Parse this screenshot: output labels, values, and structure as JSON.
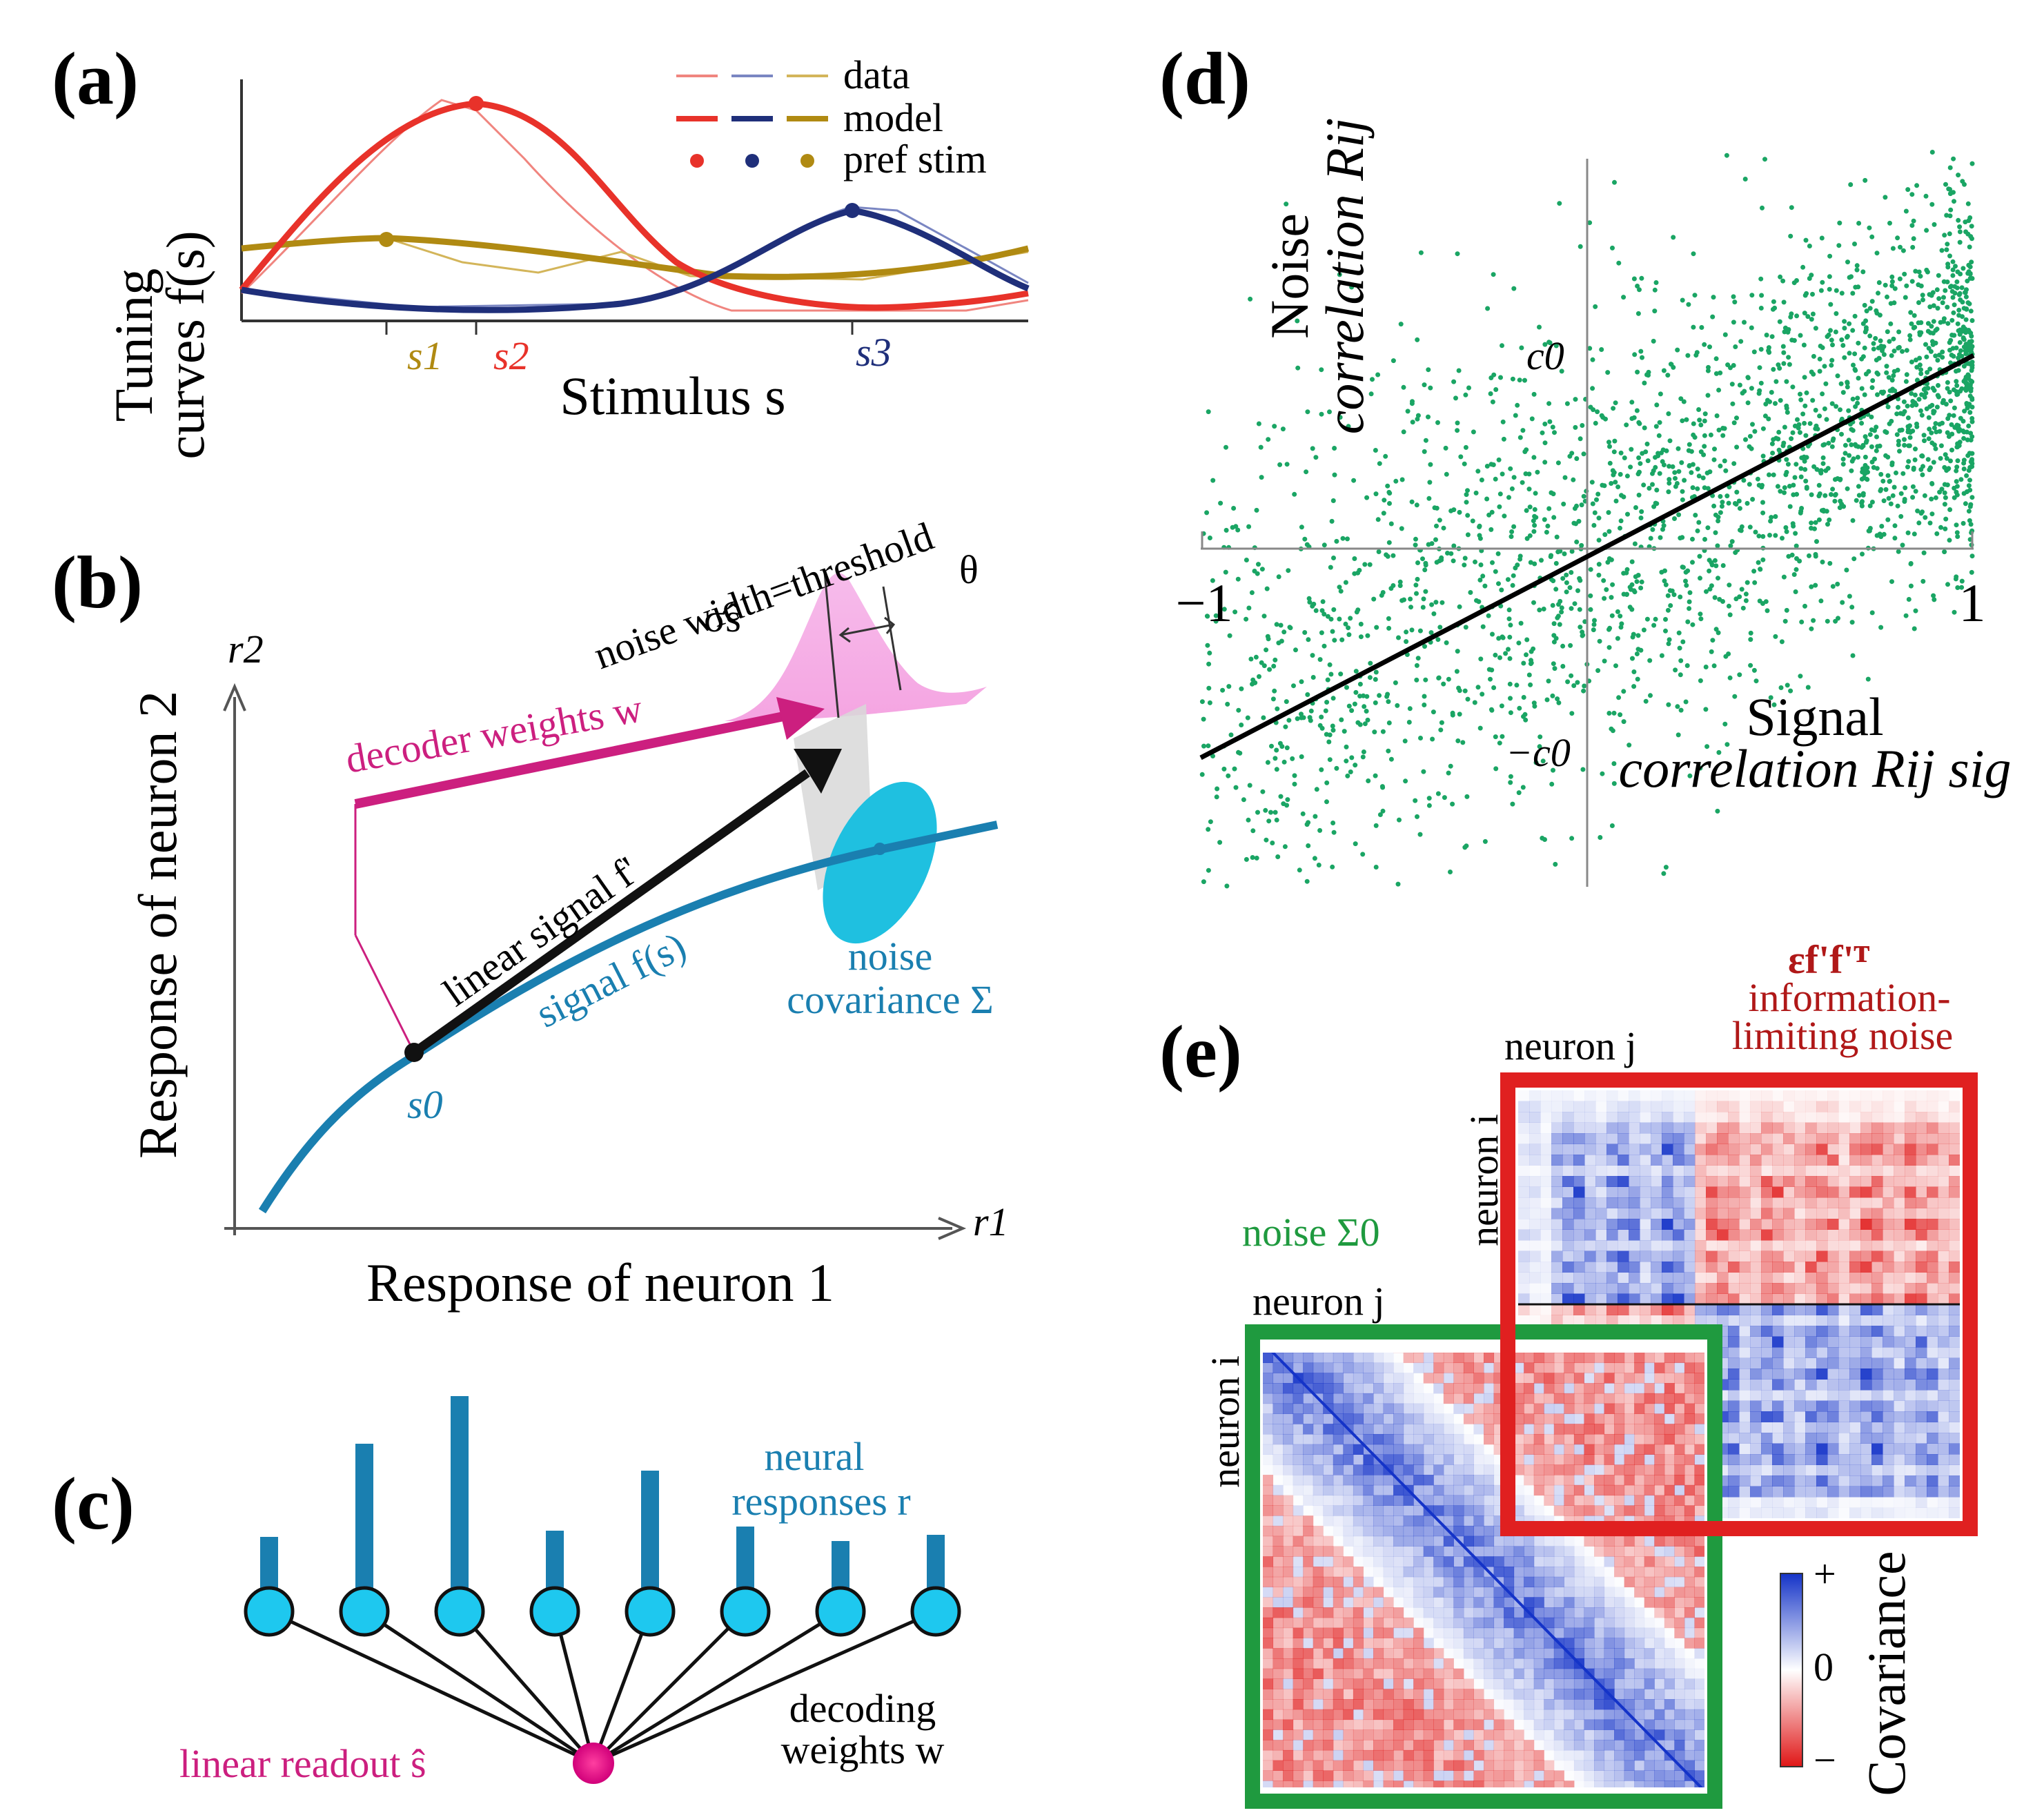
{
  "panels": {
    "a": {
      "label": "(a)",
      "ylabel_line1": "Tuning",
      "ylabel_line2": "curves f(s)",
      "xlabel": "Stimulus s",
      "legend": {
        "data": "data",
        "model": "model",
        "pref": "pref stim"
      },
      "ticks": [
        "s1",
        "s2",
        "s3"
      ],
      "colors": {
        "red": "#e8322a",
        "navy": "#1f2f7a",
        "gold": "#b08a12"
      }
    },
    "b": {
      "label": "(b)",
      "ylabel": "Response of neuron 2",
      "xlabel": "Response of neuron 1",
      "r2": "r2",
      "r1": "r1",
      "noise_width": "noise width=threshold",
      "sigma": "σŝ",
      "theta": "θ",
      "decoder": "decoder weights w",
      "linear_signal": "linear signal f'",
      "signal": "signal f(s)",
      "noise_line1": "noise",
      "noise_line2": "covariance Σ",
      "s0": "s0",
      "colors": {
        "teal": "#1a7fb0",
        "cyan": "#1fc0e0",
        "magenta": "#cc1f7f",
        "pink": "#f4a6e2"
      }
    },
    "c": {
      "label": "(c)",
      "neural_line1": "neural",
      "neural_line2": "responses r",
      "readout": "linear readout ŝ",
      "decoding_line1": "decoding",
      "decoding_line2": "weights w",
      "bar_values": [
        0.26,
        0.71,
        0.94,
        0.29,
        0.58,
        0.31,
        0.24,
        0.27
      ]
    },
    "d": {
      "label": "(d)",
      "ylabel_line1": "Noise",
      "ylabel_line2": "correlation Rij",
      "xlabel_line1": "Signal",
      "xlabel_line2": "correlation Rij sig",
      "tick_neg1": "−1",
      "tick_pos1": "1",
      "c0": "c0",
      "neg_c0": "−c0",
      "point_color": "#1aa564"
    },
    "e": {
      "label": "(e)",
      "top_title_line1": "εf'f'ᵀ",
      "top_title_line2": "information-",
      "top_title_line3": "limiting noise",
      "neuron_j": "neuron j",
      "neuron_i": "neuron i",
      "noise_label": "noise Σ0",
      "cbar_plus": "+",
      "cbar_zero": "0",
      "cbar_minus": "−",
      "cbar_title": "Covariance",
      "colors": {
        "red_frame": "#e02020",
        "green_frame": "#1f9a3f"
      }
    }
  }
}
